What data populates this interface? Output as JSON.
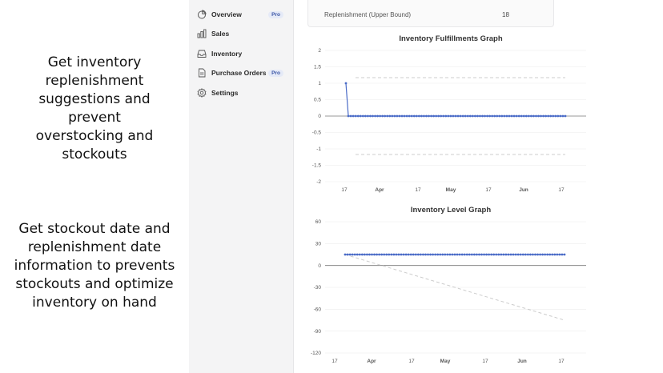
{
  "promo": {
    "text1": [
      "Get inventory",
      "replenishment",
      "suggestions and",
      "prevent",
      "overstocking and",
      "stockouts"
    ],
    "text2": [
      "Get stockout date and",
      "replenishment date",
      "information to prevents",
      "stockouts and optimize",
      "inventory on hand"
    ]
  },
  "sidebar": {
    "items": [
      {
        "label": "Overview",
        "badge": "Pro",
        "icon": "chart-pie-icon"
      },
      {
        "label": "Sales",
        "badge": "",
        "icon": "bar-chart-icon"
      },
      {
        "label": "Inventory",
        "badge": "",
        "icon": "inbox-icon"
      },
      {
        "label": "Purchase Orders",
        "badge": "Pro",
        "icon": "document-icon"
      },
      {
        "label": "Settings",
        "badge": "",
        "icon": "gear-icon"
      }
    ]
  },
  "table": {
    "label": "Replenishment (Upper Bound)",
    "value": "18"
  },
  "colors": {
    "series": "#4a6bc7",
    "bound": "#cccccc",
    "grid": "#ececec"
  },
  "chart_data": [
    {
      "type": "line",
      "title": "Inventory Fulfillments Graph",
      "ylim": [
        -2,
        2
      ],
      "yticks": [
        "2",
        "1.5",
        "1",
        "0.5",
        "0",
        "-0.5",
        "-1",
        "-1.5",
        "-2"
      ],
      "xticks": [
        "17",
        "Apr",
        "17",
        "May",
        "17",
        "Jun",
        "17"
      ],
      "xtick_bold": [
        false,
        true,
        false,
        true,
        false,
        true,
        false
      ],
      "series": [
        {
          "values": [
            1,
            0,
            0,
            0,
            0,
            0,
            0,
            0,
            0,
            0,
            0,
            0,
            0,
            0,
            0,
            0,
            0,
            0,
            0,
            0,
            0,
            0,
            0,
            0,
            0,
            0,
            0,
            0,
            0,
            0,
            0,
            0,
            0,
            0,
            0,
            0,
            0,
            0,
            0,
            0,
            0,
            0,
            0,
            0,
            0,
            0,
            0,
            0,
            0,
            0,
            0,
            0,
            0,
            0,
            0,
            0,
            0,
            0,
            0,
            0,
            0,
            0,
            0,
            0,
            0,
            0,
            0,
            0,
            0,
            0,
            0,
            0,
            0,
            0,
            0,
            0,
            0,
            0,
            0,
            0,
            0,
            0,
            0,
            0,
            0,
            0,
            0,
            0,
            0,
            0,
            0
          ]
        }
      ],
      "bands": [
        1.17,
        -1.17
      ],
      "legend": false,
      "grid": true
    },
    {
      "type": "line",
      "title": "Inventory Level Graph",
      "ylim": [
        -120,
        60
      ],
      "yticks": [
        "60",
        "30",
        "0",
        "-30",
        "-60",
        "-90",
        "-120"
      ],
      "xticks": [
        "17",
        "Apr",
        "17",
        "May",
        "17",
        "Jun",
        "17"
      ],
      "xtick_bold": [
        false,
        true,
        false,
        true,
        false,
        true,
        false
      ],
      "series": [
        {
          "values": [
            15,
            15,
            15,
            15,
            15,
            15,
            15,
            15,
            15,
            15,
            15,
            15,
            15,
            15,
            15,
            15,
            15,
            15,
            15,
            15,
            15,
            15,
            15,
            15,
            15,
            15,
            15,
            15,
            15,
            15,
            15,
            15,
            15,
            15,
            15,
            15,
            15,
            15,
            15,
            15,
            15,
            15,
            15,
            15,
            15,
            15,
            15,
            15,
            15,
            15,
            15,
            15,
            15,
            15,
            15,
            15,
            15,
            15,
            15,
            15,
            15,
            15,
            15,
            15,
            15,
            15,
            15,
            15,
            15,
            15,
            15,
            15,
            15,
            15,
            15,
            15,
            15,
            15,
            15,
            15,
            15,
            15,
            15,
            15,
            15,
            15,
            15,
            15,
            15,
            15,
            15
          ]
        }
      ],
      "trend": [
        15,
        -75
      ],
      "legend": false,
      "grid": true
    }
  ]
}
